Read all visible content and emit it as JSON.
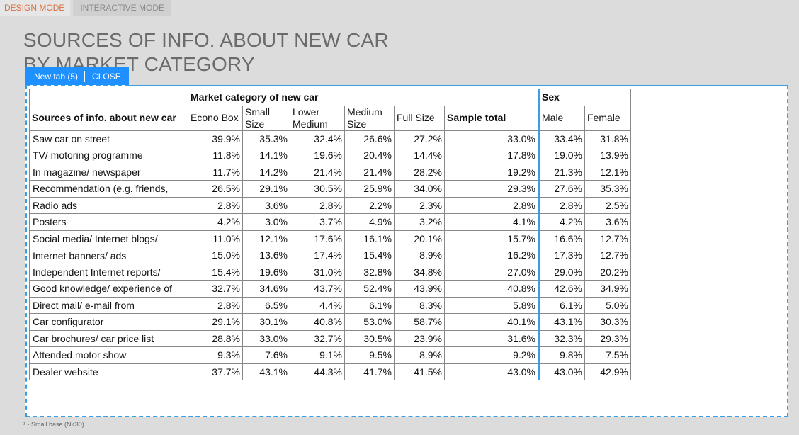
{
  "modes": {
    "design": "DESIGN MODE",
    "interactive": "INTERACTIVE MODE"
  },
  "title": {
    "line1": "SOURCES OF INFO. ABOUT NEW CAR",
    "line2": "BY MARKET CATEGORY"
  },
  "tabbar": {
    "tab_label": "New tab (5)",
    "close_label": "CLOSE"
  },
  "table": {
    "group_market": "Market category of new car",
    "group_sex": "Sex",
    "row_header": "Sources of info. about new car",
    "col_econo": "Econo Box",
    "col_small": "Small\nSize",
    "col_lower": "Lower\nMedium",
    "col_medium": "Medium\nSize",
    "col_full": "Full Size",
    "col_total": "Sample total",
    "col_male": "Male",
    "col_female": "Female",
    "rows": [
      {
        "label": "Saw car on street",
        "values": [
          "39.9%",
          "35.3%",
          "32.4%",
          "26.6%",
          "27.2%",
          "33.0%",
          "33.4%",
          "31.8%"
        ]
      },
      {
        "label": "TV/ motoring programme",
        "values": [
          "11.8%",
          "14.1%",
          "19.6%",
          "20.4%",
          "14.4%",
          "17.8%",
          "19.0%",
          "13.9%"
        ]
      },
      {
        "label": "In magazine/ newspaper",
        "values": [
          "11.7%",
          "14.2%",
          "21.4%",
          "21.4%",
          "28.2%",
          "19.2%",
          "21.3%",
          "12.1%"
        ]
      },
      {
        "label": "Recommendation (e.g. friends,",
        "values": [
          "26.5%",
          "29.1%",
          "30.5%",
          "25.9%",
          "34.0%",
          "29.3%",
          "27.6%",
          "35.3%"
        ]
      },
      {
        "label": "Radio ads",
        "values": [
          "2.8%",
          "3.6%",
          "2.8%",
          "2.2%",
          "2.3%",
          "2.8%",
          "2.8%",
          "2.5%"
        ]
      },
      {
        "label": "Posters",
        "values": [
          "4.2%",
          "3.0%",
          "3.7%",
          "4.9%",
          "3.2%",
          "4.1%",
          "4.2%",
          "3.6%"
        ]
      },
      {
        "label": "Social media/ Internet blogs/",
        "values": [
          "11.0%",
          "12.1%",
          "17.6%",
          "16.1%",
          "20.1%",
          "15.7%",
          "16.6%",
          "12.7%"
        ]
      },
      {
        "label": "Internet banners/ ads",
        "values": [
          "15.0%",
          "13.6%",
          "17.4%",
          "15.4%",
          "8.9%",
          "16.2%",
          "17.3%",
          "12.7%"
        ]
      },
      {
        "label": "Independent Internet reports/",
        "values": [
          "15.4%",
          "19.6%",
          "31.0%",
          "32.8%",
          "34.8%",
          "27.0%",
          "29.0%",
          "20.2%"
        ]
      },
      {
        "label": "Good knowledge/ experience of",
        "values": [
          "32.7%",
          "34.6%",
          "43.7%",
          "52.4%",
          "43.9%",
          "40.8%",
          "42.6%",
          "34.9%"
        ]
      },
      {
        "label": "Direct mail/ e-mail from",
        "values": [
          "2.8%",
          "6.5%",
          "4.4%",
          "6.1%",
          "8.3%",
          "5.8%",
          "6.1%",
          "5.0%"
        ]
      },
      {
        "label": "Car configurator",
        "values": [
          "29.1%",
          "30.1%",
          "40.8%",
          "53.0%",
          "58.7%",
          "40.1%",
          "43.1%",
          "30.3%"
        ]
      },
      {
        "label": "Car brochures/ car price list",
        "values": [
          "28.8%",
          "33.0%",
          "32.7%",
          "30.5%",
          "23.9%",
          "31.6%",
          "32.3%",
          "29.3%"
        ]
      },
      {
        "label": "Attended motor show",
        "values": [
          "9.3%",
          "7.6%",
          "9.1%",
          "9.5%",
          "8.9%",
          "9.2%",
          "9.8%",
          "7.5%"
        ]
      },
      {
        "label": "Dealer website",
        "values": [
          "37.7%",
          "43.1%",
          "44.3%",
          "41.7%",
          "41.5%",
          "43.0%",
          "43.0%",
          "42.9%"
        ]
      }
    ]
  },
  "footnote": "¹ - Small base (N<30)",
  "colors": {
    "accent": "#1e90ff",
    "design_mode": "#d9703f"
  }
}
